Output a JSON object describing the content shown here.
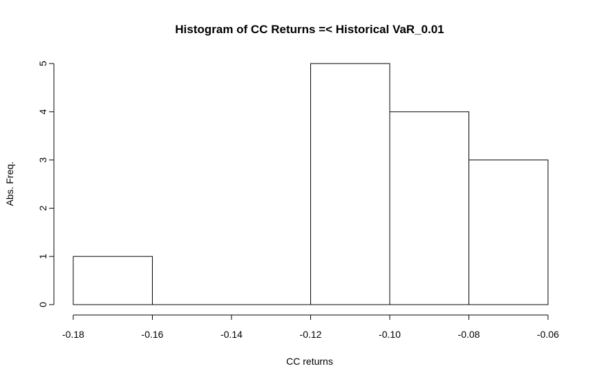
{
  "chart_data": {
    "type": "bar",
    "title": "Histogram of CC Returns =< Historical VaR_0.01",
    "xlabel": "CC returns",
    "ylabel": "Abs. Freq.",
    "bins": [
      {
        "from": -0.18,
        "to": -0.16,
        "count": 1
      },
      {
        "from": -0.16,
        "to": -0.14,
        "count": 0
      },
      {
        "from": -0.14,
        "to": -0.12,
        "count": 0
      },
      {
        "from": -0.12,
        "to": -0.1,
        "count": 5
      },
      {
        "from": -0.1,
        "to": -0.08,
        "count": 4
      },
      {
        "from": -0.08,
        "to": -0.06,
        "count": 3
      }
    ],
    "xlim": [
      -0.18,
      -0.06
    ],
    "ylim": [
      0,
      5
    ],
    "x_ticks": [
      -0.18,
      -0.16,
      -0.14,
      -0.12,
      -0.1,
      -0.08,
      -0.06
    ],
    "x_tick_labels": [
      "-0.18",
      "-0.16",
      "-0.14",
      "-0.12",
      "-0.10",
      "-0.08",
      "-0.06"
    ],
    "y_ticks": [
      0,
      1,
      2,
      3,
      4,
      5
    ],
    "y_tick_labels": [
      "0",
      "1",
      "2",
      "3",
      "4",
      "5"
    ],
    "grid": false,
    "legend": "none"
  }
}
